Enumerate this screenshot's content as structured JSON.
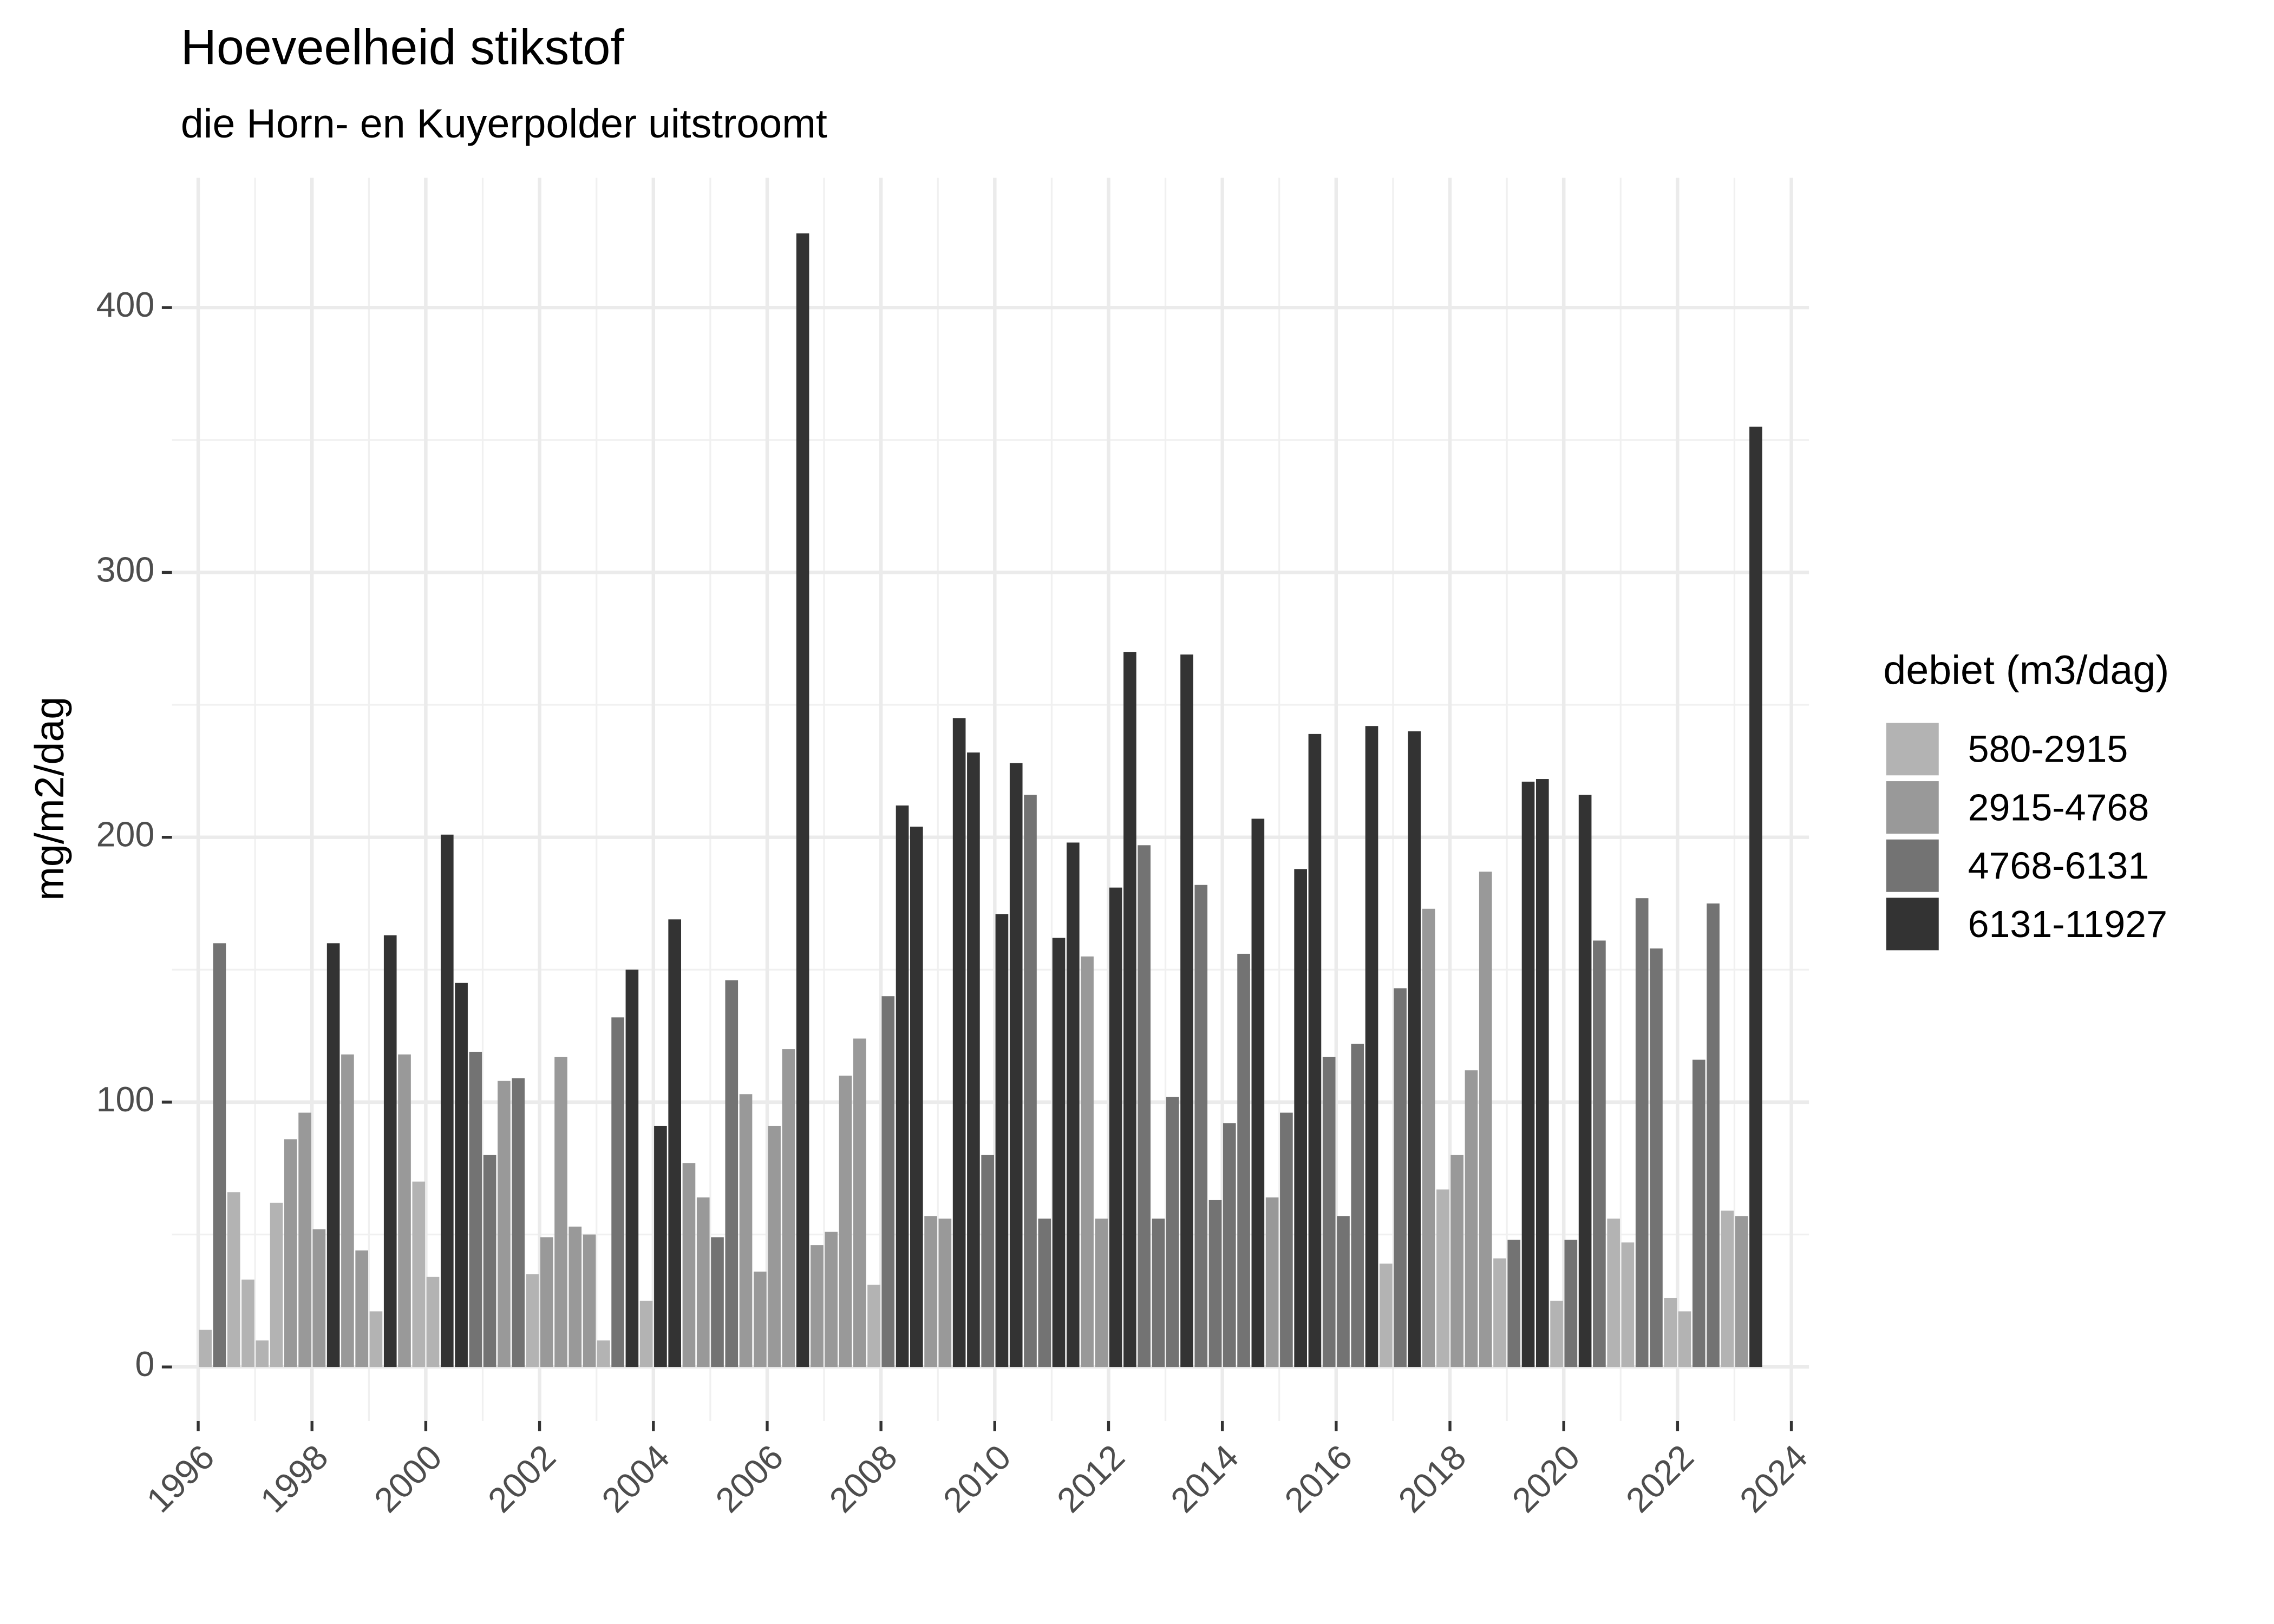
{
  "chart_data": {
    "type": "bar",
    "title": "Hoeveelheid stikstof",
    "subtitle": "die Horn- en Kuyerpolder uitstroomt",
    "y_label": "mg/m2/dag",
    "legend_title": "debiet (m3/dag)",
    "legend_position": "right",
    "grid": true,
    "xlim": [
      1995.54,
      2024.31
    ],
    "xticks": [
      1996,
      1998,
      2000,
      2002,
      2004,
      2006,
      2008,
      2010,
      2012,
      2014,
      2016,
      2018,
      2020,
      2022,
      2024
    ],
    "ylim": [
      -20.4,
      449
    ],
    "yticks": [
      0,
      100,
      200,
      300,
      400
    ],
    "series": [
      {
        "name": "580-2915",
        "color": "#b3b3b3",
        "x": [
          1996.125,
          1996.625,
          1996.875,
          1997.125,
          1997.375,
          1999.125,
          1999.875,
          2000.125,
          2001.875,
          2003.125,
          2003.875,
          2007.875,
          2016.875,
          2017.875,
          2018.875,
          2019.875,
          2020.875,
          2021.125,
          2021.875,
          2022.125,
          2022.875
        ],
        "values": [
          14,
          66,
          33,
          10,
          62,
          21,
          70,
          34,
          35,
          10,
          25,
          31,
          39,
          67,
          41,
          25,
          56,
          47,
          26,
          21,
          59
        ]
      },
      {
        "name": "2915-4768",
        "color": "#999999",
        "x": [
          1997.625,
          1997.875,
          1998.125,
          1998.625,
          1998.875,
          1999.625,
          2001.375,
          2002.125,
          2002.375,
          2002.625,
          2002.875,
          2004.625,
          2004.875,
          2005.625,
          2005.875,
          2006.125,
          2006.375,
          2006.875,
          2007.125,
          2007.375,
          2007.625,
          2008.875,
          2009.125,
          2011.625,
          2011.875,
          2014.875,
          2017.625,
          2018.125,
          2018.375,
          2018.625,
          2023.125
        ],
        "values": [
          86,
          96,
          52,
          118,
          44,
          118,
          108,
          49,
          117,
          53,
          50,
          77,
          64,
          103,
          36,
          91,
          120,
          46,
          51,
          110,
          124,
          57,
          56,
          155,
          56,
          64,
          173,
          80,
          112,
          187,
          57
        ]
      },
      {
        "name": "4768-6131",
        "color": "#737373",
        "x": [
          1996.375,
          2000.875,
          2001.125,
          2001.625,
          2003.375,
          2005.125,
          2005.375,
          2008.125,
          2009.875,
          2010.625,
          2010.875,
          2012.625,
          2012.875,
          2013.125,
          2013.625,
          2013.875,
          2014.125,
          2014.375,
          2015.125,
          2015.875,
          2016.125,
          2016.375,
          2017.125,
          2019.125,
          2020.125,
          2020.625,
          2021.375,
          2021.625,
          2022.375,
          2022.625
        ],
        "values": [
          160,
          119,
          80,
          109,
          132,
          49,
          146,
          140,
          80,
          216,
          56,
          197,
          56,
          102,
          182,
          63,
          92,
          156,
          96,
          117,
          57,
          122,
          143,
          48,
          48,
          161,
          177,
          158,
          116,
          175
        ]
      },
      {
        "name": "6131-11927",
        "color": "#333333",
        "x": [
          1998.375,
          1999.375,
          2000.375,
          2000.625,
          2003.625,
          2004.125,
          2004.375,
          2006.625,
          2008.375,
          2008.625,
          2009.375,
          2009.625,
          2010.125,
          2010.375,
          2011.125,
          2011.375,
          2012.125,
          2012.375,
          2013.375,
          2014.625,
          2015.375,
          2015.625,
          2016.625,
          2017.375,
          2019.375,
          2019.625,
          2020.375,
          2023.375
        ],
        "values": [
          160,
          163,
          201,
          145,
          150,
          91,
          169,
          428,
          212,
          204,
          245,
          232,
          171,
          228,
          162,
          198,
          181,
          270,
          269,
          207,
          188,
          239,
          242,
          240,
          221,
          222,
          216,
          355
        ]
      }
    ]
  }
}
